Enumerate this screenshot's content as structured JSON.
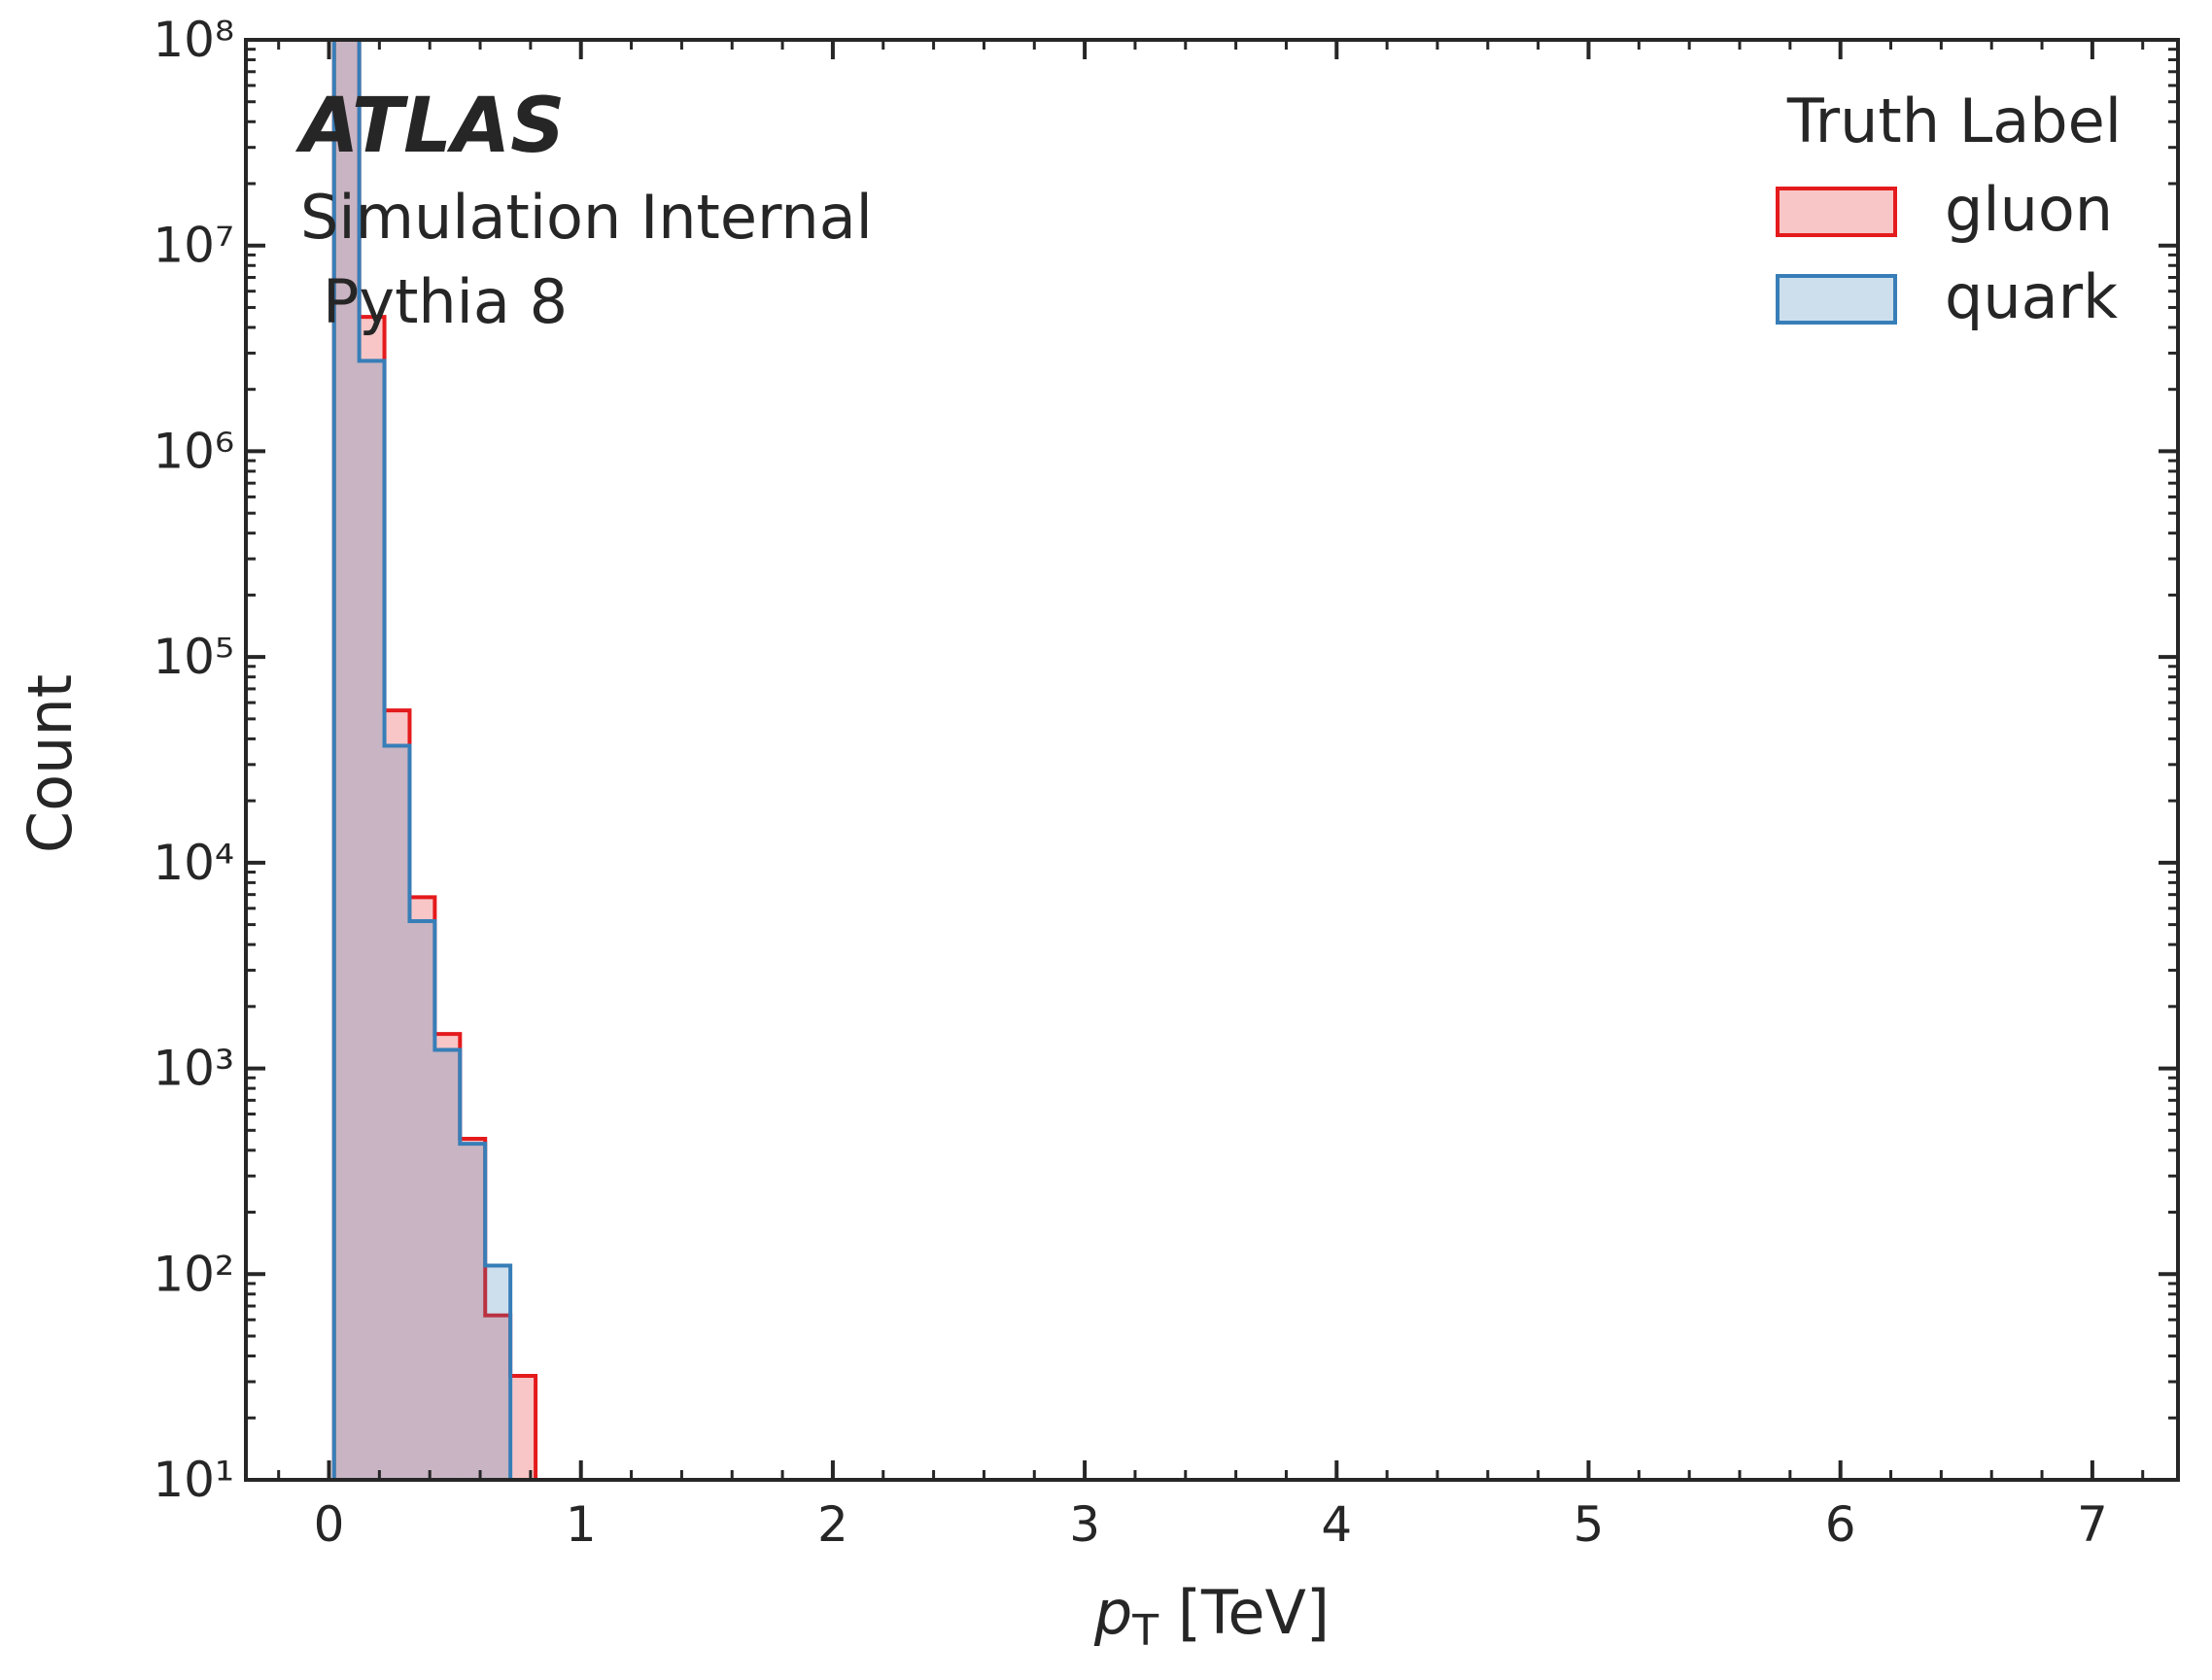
{
  "chart_data": {
    "type": "histogram",
    "experiment": "ATLAS",
    "subtitle": "Simulation Internal",
    "generator": "Pythia 8",
    "xlabel": {
      "var": "p",
      "sub": "T",
      "unit": " [TeV]"
    },
    "ylabel": "Count",
    "legend_title": "Truth Label",
    "legend": "upper right",
    "log_y": true,
    "bins": [
      0.02,
      0.12,
      0.22,
      0.32,
      0.42,
      0.52,
      0.62,
      0.72,
      0.82
    ],
    "series": [
      {
        "name": "gluon",
        "color": "#e41a1c",
        "values": [
          200000000,
          4500000,
          55000,
          6800,
          1470,
          455,
          63,
          32
        ]
      },
      {
        "name": "quark",
        "color": "#377eb8",
        "values": [
          150000000,
          2750000,
          37000,
          5200,
          1230,
          430,
          110,
          0
        ]
      }
    ],
    "xlim": [
      -0.33,
      7.34
    ],
    "ylim": [
      10,
      100000000
    ],
    "xticks": [
      0,
      1,
      2,
      3,
      4,
      5,
      6,
      7
    ],
    "yticks": [
      {
        "value": 10,
        "label": "10¹"
      },
      {
        "value": 100,
        "label": "10²"
      },
      {
        "value": 1000,
        "label": "10³"
      },
      {
        "value": 10000,
        "label": "10⁴"
      },
      {
        "value": 100000,
        "label": "10⁵"
      },
      {
        "value": 1000000,
        "label": "10⁶"
      },
      {
        "value": 10000000,
        "label": "10⁷"
      },
      {
        "value": 100000000,
        "label": "10⁸"
      }
    ]
  }
}
